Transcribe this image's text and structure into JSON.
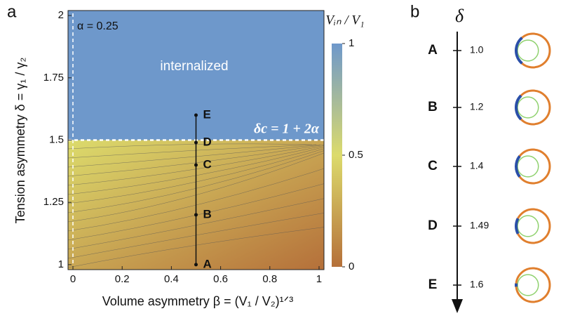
{
  "chart_data": {
    "type": "contour",
    "panel_label": "a",
    "x_label": "Volume asymmetry  β = (V₁ / V₂)¹ᐟ³",
    "y_label": "Tension asymmetry  δ = γ₁ / γ₂",
    "xlim": [
      -0.02,
      1.02
    ],
    "xticks": [
      0,
      0.2,
      0.4,
      0.6,
      0.8,
      1
    ],
    "ylim": [
      0.98,
      2.02
    ],
    "yticks": [
      1,
      1.25,
      1.5,
      1.75,
      2
    ],
    "colorbar_label": "Vᵢₙ / V₁",
    "clim": [
      0,
      1
    ],
    "cticks": [
      0,
      0.5,
      1
    ],
    "colormap": [
      "#b5703a",
      "#dcdb6c",
      "#6e98cb"
    ],
    "boundary": 1.5,
    "annotations": {
      "alpha": "α = 0.25",
      "region": "internalized",
      "critical": "δc = 1 + 2α"
    },
    "points": {
      "x": [
        0.5,
        0.5,
        0.5,
        0.5,
        0.5
      ],
      "values": [
        1,
        1.2,
        1.4,
        1.49,
        1.6
      ],
      "labels": [
        "A",
        "B",
        "C",
        "D",
        "E"
      ]
    }
  },
  "diagram": {
    "panel_label": "b",
    "axis_label": "δ",
    "rows": [
      {
        "label": "A",
        "value": "1.0"
      },
      {
        "label": "B",
        "value": "1.2"
      },
      {
        "label": "C",
        "value": "1.4"
      },
      {
        "label": "D",
        "value": "1.49"
      },
      {
        "label": "E",
        "value": "1.6"
      }
    ]
  }
}
